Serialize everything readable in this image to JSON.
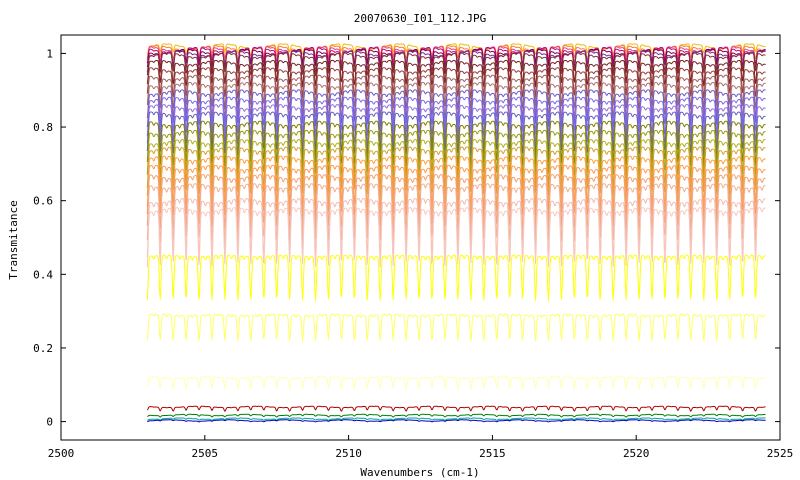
{
  "chart_data": {
    "type": "line",
    "title": "20070630_I01_112.JPG",
    "xlabel": "Wavenumbers (cm-1)",
    "ylabel": "Transmitance",
    "xlim": [
      2500,
      2525
    ],
    "ylim": [
      -0.05,
      1.05
    ],
    "x_ticks": [
      "2500",
      "2505",
      "2510",
      "2515",
      "2520",
      "2525"
    ],
    "y_ticks": [
      "0",
      "0.2",
      "0.4",
      "0.6",
      "0.8",
      "1"
    ],
    "grid": false,
    "legend": "none",
    "x_range_data": [
      2503.0,
      2524.5
    ],
    "line_spacing_cm1": 0.45,
    "series": [
      {
        "level": 1.02,
        "depth": 0.02,
        "color": "#f5b800"
      },
      {
        "level": 1.015,
        "depth": 0.03,
        "color": "#ff7a3a"
      },
      {
        "level": 1.012,
        "depth": 0.035,
        "color": "#e0408a"
      },
      {
        "level": 1.01,
        "depth": 0.04,
        "color": "#c0007a"
      },
      {
        "level": 1.005,
        "depth": 0.04,
        "color": "#800040"
      },
      {
        "level": 1.0,
        "depth": 0.045,
        "color": "#7030a0"
      },
      {
        "level": 0.995,
        "depth": 0.05,
        "color": "#8a3030"
      },
      {
        "level": 0.975,
        "depth": 0.06,
        "color": "#7a2020"
      },
      {
        "level": 0.955,
        "depth": 0.07,
        "color": "#9a3a3a"
      },
      {
        "level": 0.935,
        "depth": 0.08,
        "color": "#a06060"
      },
      {
        "level": 0.915,
        "depth": 0.09,
        "color": "#b07070"
      },
      {
        "level": 0.895,
        "depth": 0.09,
        "color": "#6a5acd"
      },
      {
        "level": 0.875,
        "depth": 0.095,
        "color": "#7b68ee"
      },
      {
        "level": 0.855,
        "depth": 0.1,
        "color": "#9370db"
      },
      {
        "level": 0.835,
        "depth": 0.105,
        "color": "#6060c0"
      },
      {
        "level": 0.81,
        "depth": 0.11,
        "color": "#808000"
      },
      {
        "level": 0.785,
        "depth": 0.115,
        "color": "#9a9a10"
      },
      {
        "level": 0.76,
        "depth": 0.12,
        "color": "#b0b020"
      },
      {
        "level": 0.74,
        "depth": 0.12,
        "color": "#d4a030"
      },
      {
        "level": 0.715,
        "depth": 0.13,
        "color": "#ffa040"
      },
      {
        "level": 0.69,
        "depth": 0.13,
        "color": "#ff9a50"
      },
      {
        "level": 0.665,
        "depth": 0.14,
        "color": "#f4a070"
      },
      {
        "level": 0.64,
        "depth": 0.15,
        "color": "#f0b090"
      },
      {
        "level": 0.6,
        "depth": 0.15,
        "color": "#f4bcb0"
      },
      {
        "level": 0.575,
        "depth": 0.15,
        "color": "#f8c8c0"
      },
      {
        "level": 0.45,
        "depth": 0.12,
        "color": "#ffff00"
      },
      {
        "level": 0.29,
        "depth": 0.07,
        "color": "#ffff60"
      },
      {
        "level": 0.12,
        "depth": 0.03,
        "color": "#ffffb0"
      },
      {
        "level": 0.04,
        "depth": 0.01,
        "color": "#b00000"
      },
      {
        "level": 0.018,
        "depth": 0.004,
        "color": "#008000"
      },
      {
        "level": 0.008,
        "depth": 0.003,
        "color": "#00a0a0"
      },
      {
        "level": 0.003,
        "depth": 0.002,
        "color": "#0000c0"
      }
    ]
  }
}
